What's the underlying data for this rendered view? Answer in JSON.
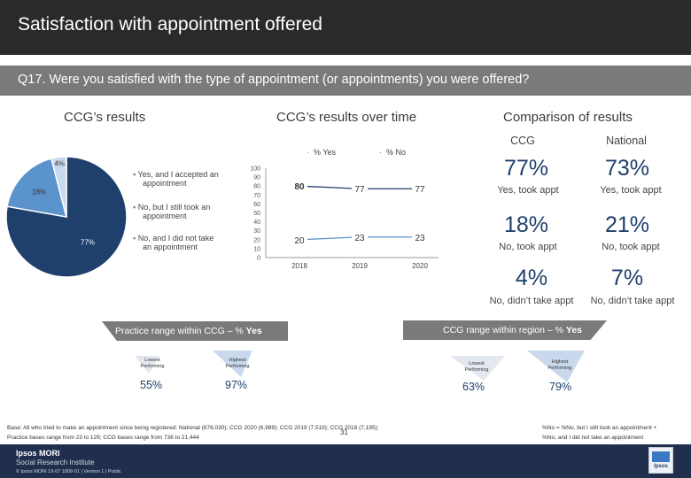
{
  "header": {
    "title": "Satisfaction with appointment offered",
    "question": "Q17. Were you satisfied with the type of appointment (or appointments) you were offered?"
  },
  "sections": {
    "ccg_results": "CCG’s results",
    "over_time": "CCG’s results over time",
    "comparison": "Comparison of results"
  },
  "pie": {
    "legend": [
      {
        "label_line1": "Yes, and I accepted an",
        "label_line2": "appointment",
        "color": "#1f3f6c"
      },
      {
        "label_line1": "No, but I still took an",
        "label_line2": "appointment",
        "color": "#5b93cc"
      },
      {
        "label_line1": "No, and I did not take",
        "label_line2": "an appointment",
        "color": "#c7d9ee"
      }
    ]
  },
  "chart_data": [
    {
      "type": "pie",
      "title": "CCG’s results",
      "labels": [
        "Yes, and I accepted an appointment",
        "No, but I still took an appointment",
        "No, and I did not take an appointment"
      ],
      "values": [
        77,
        18,
        4
      ],
      "value_labels": [
        "77%",
        "18%",
        "4%"
      ]
    },
    {
      "type": "line",
      "title": "CCG’s results over time",
      "categories": [
        "2018",
        "2019",
        "2020"
      ],
      "y_ticks": [
        "0",
        "10",
        "20",
        "30",
        "40",
        "50",
        "60",
        "70",
        "80",
        "90",
        "100"
      ],
      "ylim": [
        0,
        100
      ],
      "legend_title_yes": "% Yes",
      "legend_title_no": "% No",
      "series": [
        {
          "name": "% Yes",
          "values": [
            80,
            77,
            77
          ],
          "labels": [
            "80",
            "77",
            "77"
          ],
          "color": "#1f3f6c"
        },
        {
          "name": "% No",
          "values": [
            20,
            23,
            23
          ],
          "labels": [
            "20",
            "23",
            "23"
          ],
          "color": "#5b93cc"
        }
      ]
    }
  ],
  "comparison": {
    "col_ccg": "CCG",
    "col_national": "National",
    "rows": [
      {
        "ccg": "77%",
        "national": "73%",
        "caption": "Yes, took appt",
        "color": "#1f3f6c"
      },
      {
        "ccg": "18%",
        "national": "21%",
        "caption": "No, took appt",
        "color": "#1f3f6c"
      },
      {
        "ccg": "4%",
        "national": "7%",
        "caption": "No, didn’t take appt",
        "color": "#1f3f6c"
      }
    ]
  },
  "practice_range": {
    "title_prefix": "Practice range within CCG – % ",
    "title_bold": "Yes",
    "lowest_label_1": "Lowest",
    "lowest_label_2": "Performing",
    "highest_label_1": "Highest",
    "highest_label_2": "Performing",
    "lowest_value": "55%",
    "highest_value": "97%"
  },
  "ccg_range": {
    "title_prefix": "CCG range within region – % ",
    "title_bold": "Yes",
    "lowest_label_1": "Lowest",
    "lowest_label_2": "Performing",
    "highest_label_1": "Highest",
    "highest_label_2": "Performing",
    "lowest_value": "63%",
    "highest_value": "79%"
  },
  "footer": {
    "base_line1": "Base: All who tried to make an appointment since being registered: National (678,030); CCG 2020 (6,989); CCG 2019 (7,519); CCG 2018 (7,195);",
    "base_line2": "Practice bases range from 23 to 129; CCG bases range from 736 to 21,444",
    "note_line1": "%No = %No, but I still took an appointment +",
    "note_line2": "%No, and I did not take an appointment",
    "page_number": "31",
    "brand_line1": "Ipsos MORI",
    "brand_line2": "Social Research Institute",
    "copyright": "© Ipsos MORI      19-07 1809-01 | Version 1 | Public",
    "logo_text": "Ipsos"
  }
}
